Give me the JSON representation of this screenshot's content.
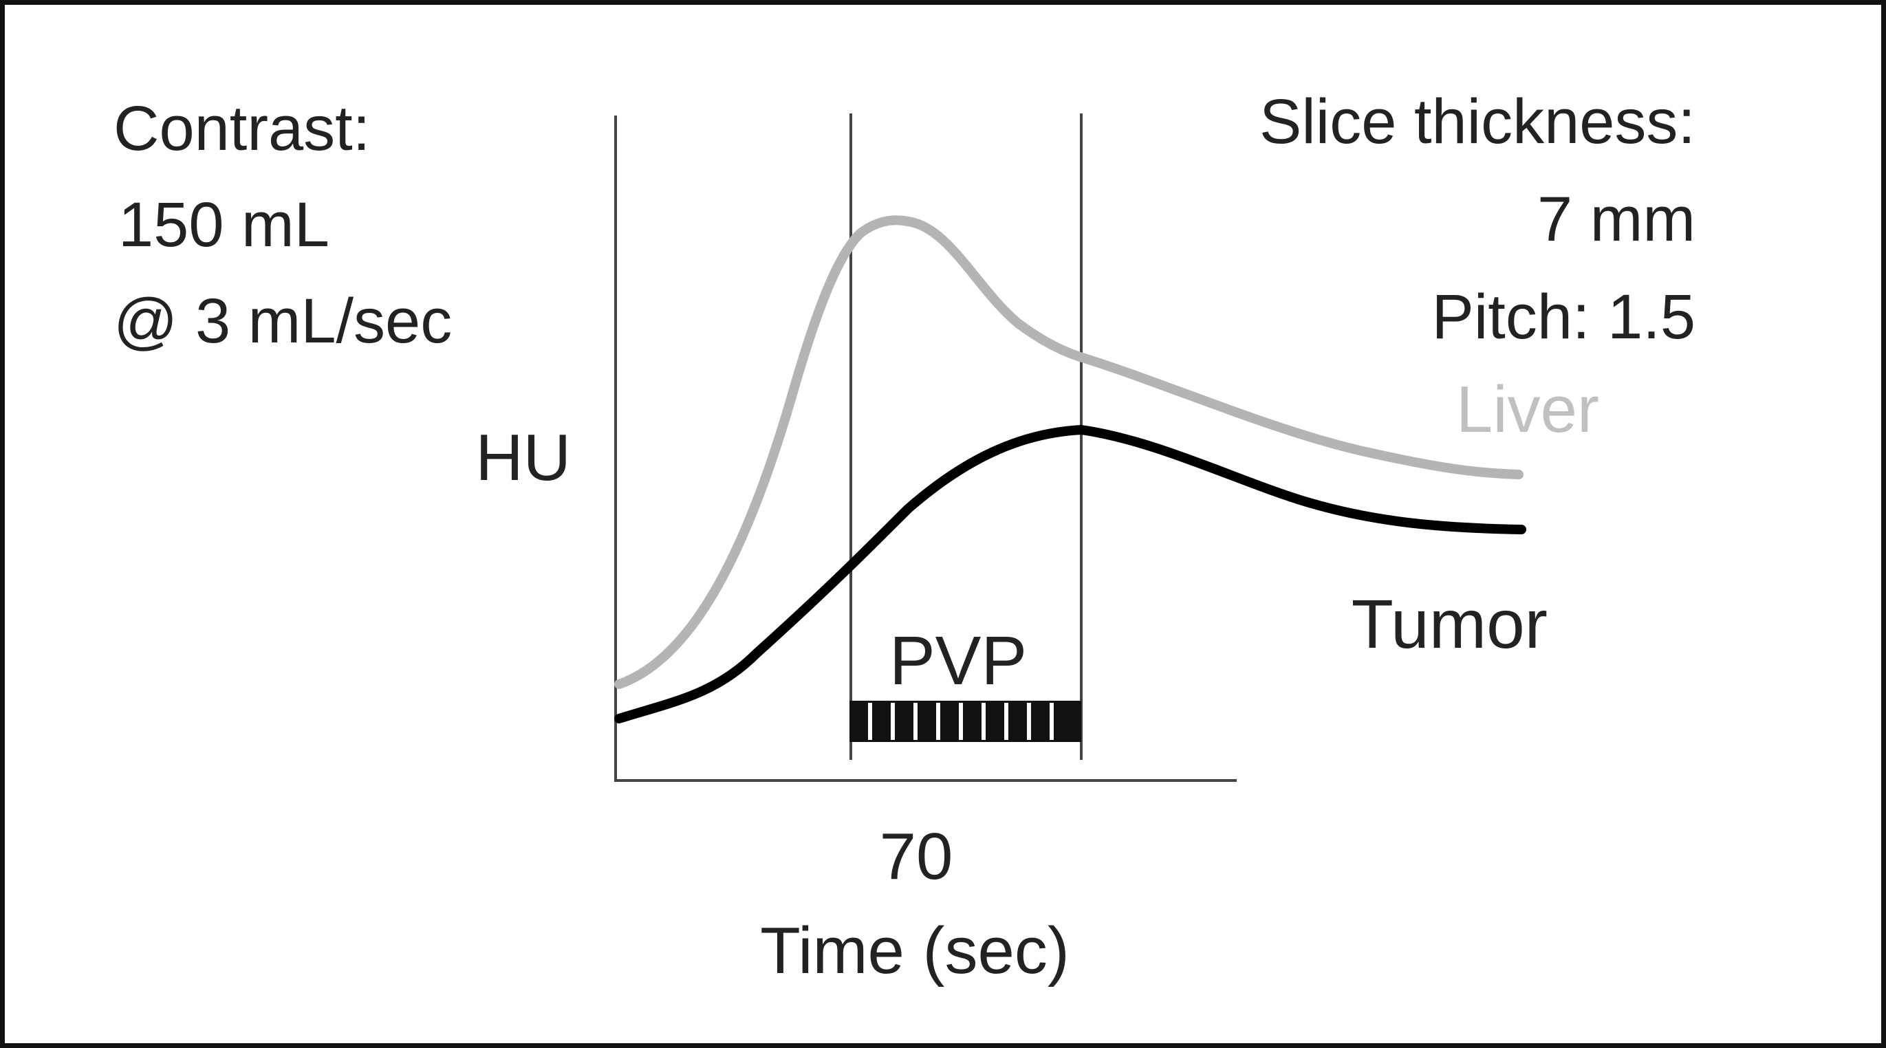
{
  "contrast": {
    "line1": "Contrast:",
    "line2": "150 mL",
    "line3": "@ 3 mL/sec"
  },
  "scan": {
    "line1": "Slice thickness:",
    "line2": "7 mm",
    "line3": "Pitch: 1.5"
  },
  "axes": {
    "y_label": "HU",
    "x_tick": "70",
    "x_label": "Time (sec)"
  },
  "phase": {
    "label": "PVP"
  },
  "curves": {
    "liver": {
      "label": "Liver",
      "color": "#b4b4b4"
    },
    "tumor": {
      "label": "Tumor",
      "color": "#000000"
    }
  },
  "colors": {
    "axis": "#444444",
    "text": "#222222"
  }
}
